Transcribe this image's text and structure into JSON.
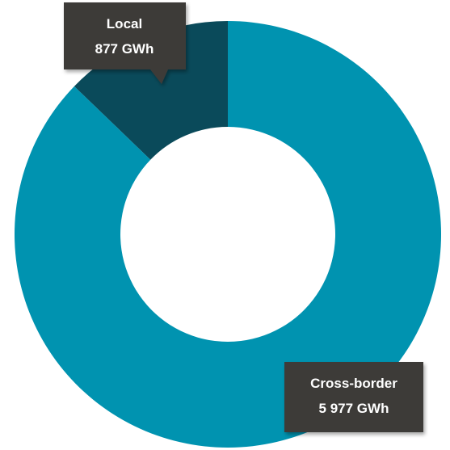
{
  "chart_data": {
    "type": "pie",
    "variant": "donut",
    "grid": false,
    "slices": [
      {
        "label": "Local",
        "value": 877,
        "unit": "GWh",
        "display_value": "877 GWh",
        "color": "#0a4a5a"
      },
      {
        "label": "Cross-border",
        "value": 5977,
        "unit": "GWh",
        "display_value": "5 977 GWh",
        "color": "#0093b0"
      }
    ]
  },
  "colors": {
    "callout_background": "#3d3b39",
    "callout_text": "#ffffff",
    "page_background": "#ffffff"
  }
}
